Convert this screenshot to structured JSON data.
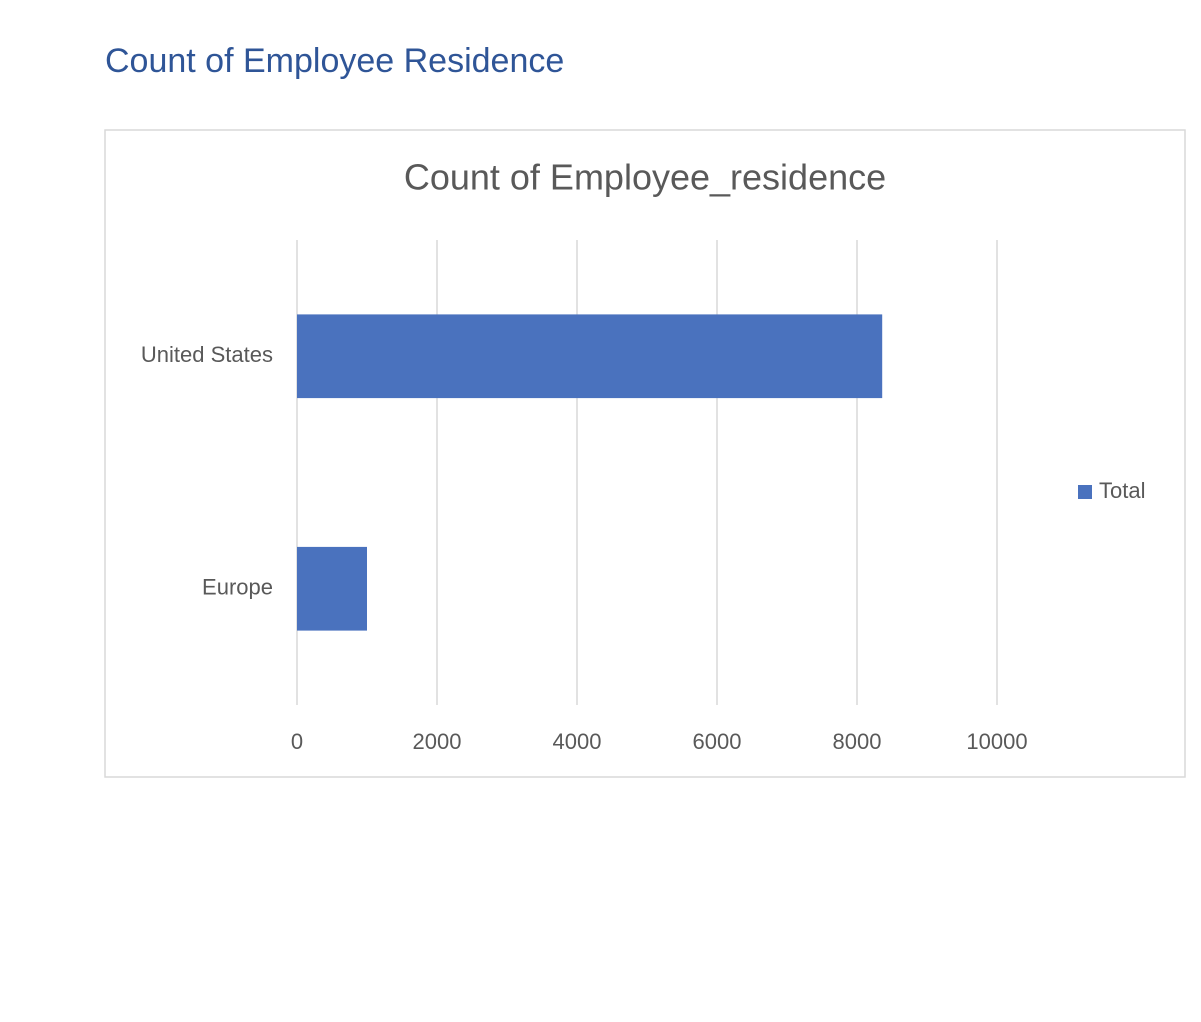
{
  "heading": "Count of Employee Residence",
  "chart_data": {
    "type": "hbar",
    "title": "Count of Employee_residence",
    "categories": [
      "United States",
      "Europe"
    ],
    "series": [
      {
        "name": "Total",
        "color": "#4a72be",
        "values": [
          8360,
          1000
        ]
      }
    ],
    "xlim": [
      0,
      10000
    ],
    "xticks": [
      0,
      2000,
      4000,
      6000,
      8000,
      10000
    ],
    "grid": true,
    "legend": "right"
  }
}
